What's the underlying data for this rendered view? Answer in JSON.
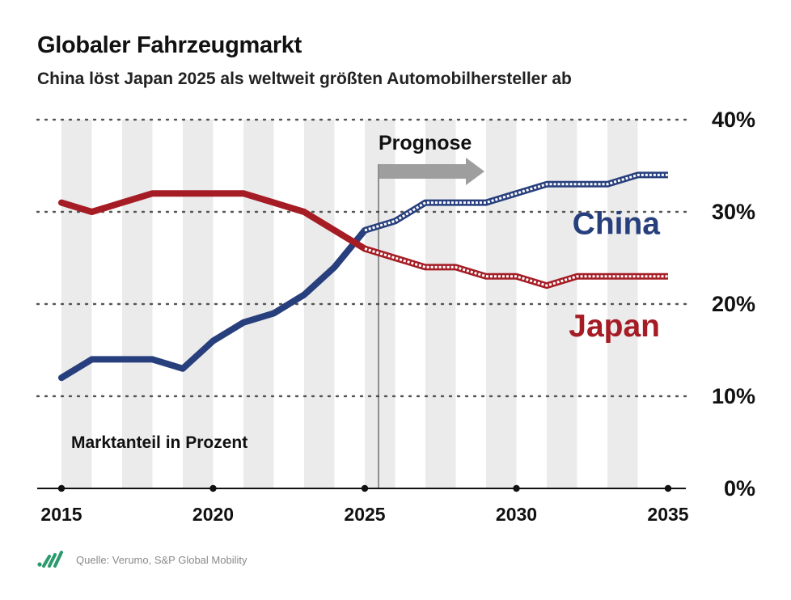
{
  "header": {
    "title": "Globaler Fahrzeugmarkt",
    "subtitle": "China löst Japan 2025 als weltweit größten Automobilhersteller ab"
  },
  "footer": {
    "source": "Quelle: Verumo, S&P Global Mobility",
    "logo_icon": "verumo-logo-icon"
  },
  "colors": {
    "china": "#283f7d",
    "japan": "#a51c24",
    "stripe": "#ebebeb",
    "arrow": "#9e9e9e"
  },
  "chart_data": {
    "type": "line",
    "title": "Globaler Fahrzeugmarkt",
    "subtitle": "China löst Japan 2025 als weltweit größten Automobilhersteller ab",
    "ylabel": "Marktanteil in Prozent",
    "annotation": "Prognose",
    "forecast_start": 2025,
    "x": [
      2015,
      2016,
      2017,
      2018,
      2019,
      2020,
      2021,
      2022,
      2023,
      2024,
      2025,
      2026,
      2027,
      2028,
      2029,
      2030,
      2031,
      2032,
      2033,
      2034,
      2035
    ],
    "x_ticks": [
      "2015",
      "2020",
      "2025",
      "2030",
      "2035"
    ],
    "y_ticks": [
      "0%",
      "10%",
      "20%",
      "30%",
      "40%"
    ],
    "xlim": [
      2015,
      2035
    ],
    "ylim": [
      0,
      40
    ],
    "grid": "dotted horizontal",
    "legend": "inline labels right",
    "series": [
      {
        "name": "China",
        "values": [
          12,
          14,
          14,
          14,
          13,
          16,
          18,
          19,
          21,
          24,
          28,
          29,
          31,
          31,
          31,
          32,
          33,
          33,
          33,
          34,
          34
        ]
      },
      {
        "name": "Japan",
        "values": [
          31,
          30,
          31,
          32,
          32,
          32,
          32,
          31,
          30,
          28,
          26,
          25,
          24,
          24,
          23,
          23,
          22,
          23,
          23,
          23,
          23
        ]
      }
    ]
  }
}
